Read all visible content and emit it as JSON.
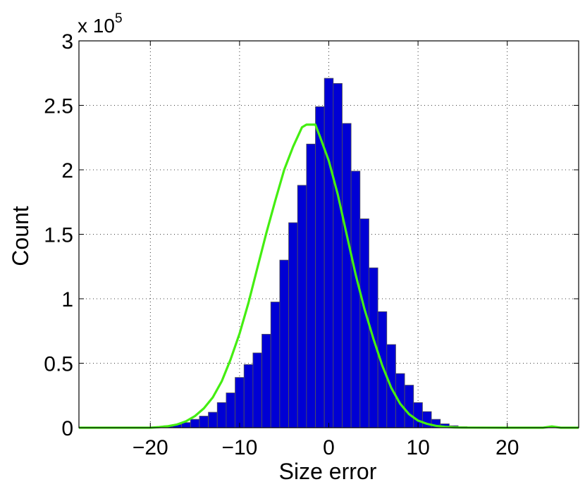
{
  "chart_data": {
    "type": "bar",
    "xlabel": "Size error",
    "ylabel": "Count",
    "y_multiplier": {
      "base": "x 10",
      "exponent": "5"
    },
    "xlim": [
      -28,
      28
    ],
    "ylim": [
      0,
      300000
    ],
    "xticks": [
      -20,
      -10,
      0,
      10,
      20
    ],
    "xtick_labels": [
      "−20",
      "−10",
      "0",
      "10",
      "20"
    ],
    "yticks": [
      0,
      50000,
      100000,
      150000,
      200000,
      250000,
      300000
    ],
    "ytick_labels": [
      "0",
      "0.5",
      "1",
      "1.5",
      "2",
      "2.5",
      "3"
    ],
    "grid": true,
    "bin_width": 1,
    "series": [
      {
        "kind": "histogram",
        "color": "#0000d4",
        "edge_color": "#555555",
        "bin_centers": [
          -19,
          -18,
          -17,
          -16,
          -15,
          -14,
          -13,
          -12,
          -11,
          -10,
          -9,
          -8,
          -7,
          -6,
          -5,
          -4,
          -3,
          -2,
          -1,
          0,
          1,
          2,
          3,
          4,
          5,
          6,
          7,
          8,
          9,
          10,
          11,
          12,
          13,
          14,
          15,
          16
        ],
        "values": [
          800,
          1500,
          2500,
          4000,
          6500,
          9000,
          12000,
          19500,
          27000,
          39000,
          49000,
          58000,
          72500,
          97500,
          130000,
          159000,
          188000,
          220000,
          249000,
          271000,
          267000,
          236000,
          199000,
          162000,
          124000,
          90000,
          64500,
          42000,
          33000,
          19500,
          12500,
          6500,
          3000,
          1500,
          800,
          300
        ]
      },
      {
        "kind": "line",
        "color": "#44ee11",
        "x": [
          -28,
          -20,
          -19,
          -18,
          -17,
          -16,
          -15,
          -14,
          -13,
          -12,
          -11,
          -10,
          -9,
          -8,
          -7,
          -6,
          -5,
          -4,
          -3,
          -2.5,
          -1.5,
          -1,
          0,
          1,
          2,
          3,
          4,
          5,
          6,
          7,
          8,
          9,
          10,
          11,
          12,
          13,
          14,
          15,
          20,
          24,
          25,
          26,
          28
        ],
        "y": [
          0,
          0,
          500,
          1200,
          2500,
          5000,
          9000,
          15000,
          23500,
          36000,
          53000,
          73000,
          97000,
          124000,
          151000,
          176000,
          200000,
          218000,
          233000,
          235000,
          235000,
          226000,
          207000,
          181000,
          150000,
          119000,
          92000,
          69000,
          48000,
          31000,
          18500,
          10500,
          5500,
          3000,
          1500,
          700,
          300,
          100,
          0,
          0,
          1000,
          0,
          0
        ]
      }
    ]
  }
}
